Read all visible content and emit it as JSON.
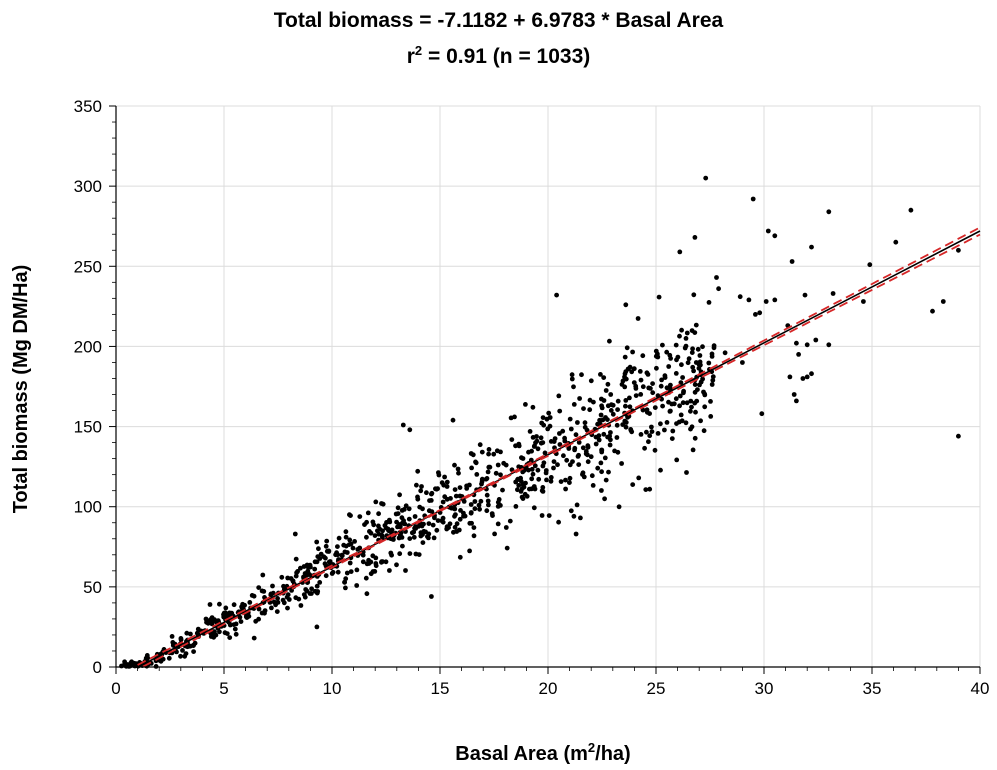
{
  "chart_data": {
    "type": "scatter",
    "title_line1": "Total biomass = -7.1182 + 6.9783 * Basal Area",
    "title_line2": {
      "r": "r",
      "sup": "2",
      "rest": " = 0.91 (n = 1033)"
    },
    "xlabel": {
      "pre": "Basal Area (m",
      "sup": "2",
      "post": "/ha)"
    },
    "ylabel": "Total biomass (Mg DM/Ha)",
    "xlim": [
      0,
      40
    ],
    "ylim": [
      0,
      350
    ],
    "xticks": [
      0,
      5,
      10,
      15,
      20,
      25,
      30,
      35,
      40
    ],
    "yticks": [
      0,
      50,
      100,
      150,
      200,
      250,
      300,
      350
    ],
    "grid": true,
    "regression": {
      "intercept": -7.1182,
      "slope": 6.9783,
      "color": "#000000"
    },
    "confidence_band": {
      "color": "#d62728",
      "style": "dashed"
    },
    "point_color": "#000000",
    "outliers": [
      [
        27.3,
        305
      ],
      [
        29.5,
        292
      ],
      [
        33.0,
        284
      ],
      [
        36.8,
        285
      ],
      [
        30.2,
        272
      ],
      [
        30.5,
        269
      ],
      [
        26.8,
        268
      ],
      [
        32.2,
        262
      ],
      [
        26.1,
        259
      ],
      [
        36.1,
        265
      ],
      [
        39.0,
        260
      ],
      [
        34.9,
        251
      ],
      [
        31.3,
        253
      ],
      [
        38.3,
        228
      ],
      [
        37.8,
        222
      ],
      [
        39.0,
        144
      ],
      [
        29.9,
        158
      ],
      [
        31.5,
        166
      ],
      [
        31.4,
        170
      ],
      [
        33.0,
        201
      ],
      [
        32.0,
        181
      ],
      [
        31.2,
        181
      ],
      [
        31.8,
        180
      ],
      [
        32.2,
        183
      ],
      [
        20.4,
        232
      ],
      [
        23.6,
        226
      ],
      [
        27.8,
        243
      ],
      [
        28.9,
        231
      ],
      [
        27.9,
        236
      ],
      [
        29.3,
        229
      ],
      [
        30.1,
        228
      ],
      [
        30.5,
        229
      ],
      [
        31.9,
        232
      ],
      [
        33.2,
        233
      ],
      [
        34.6,
        228
      ],
      [
        29.8,
        221
      ],
      [
        29.6,
        220
      ],
      [
        31.1,
        213
      ],
      [
        31.5,
        202
      ],
      [
        32.0,
        201
      ],
      [
        32.4,
        204
      ],
      [
        31.6,
        195
      ],
      [
        15.6,
        154
      ],
      [
        13.6,
        148
      ],
      [
        19.3,
        162
      ],
      [
        14.6,
        44
      ],
      [
        9.3,
        25
      ],
      [
        6.4,
        18
      ],
      [
        21.3,
        83
      ],
      [
        21.2,
        94
      ],
      [
        21.5,
        93
      ],
      [
        24.2,
        118
      ],
      [
        22.3,
        124
      ],
      [
        8.3,
        83
      ],
      [
        12.1,
        85
      ],
      [
        13.3,
        151
      ],
      [
        15.1,
        115
      ],
      [
        26.7,
        187
      ],
      [
        28.2,
        196
      ],
      [
        29.0,
        190
      ]
    ]
  }
}
